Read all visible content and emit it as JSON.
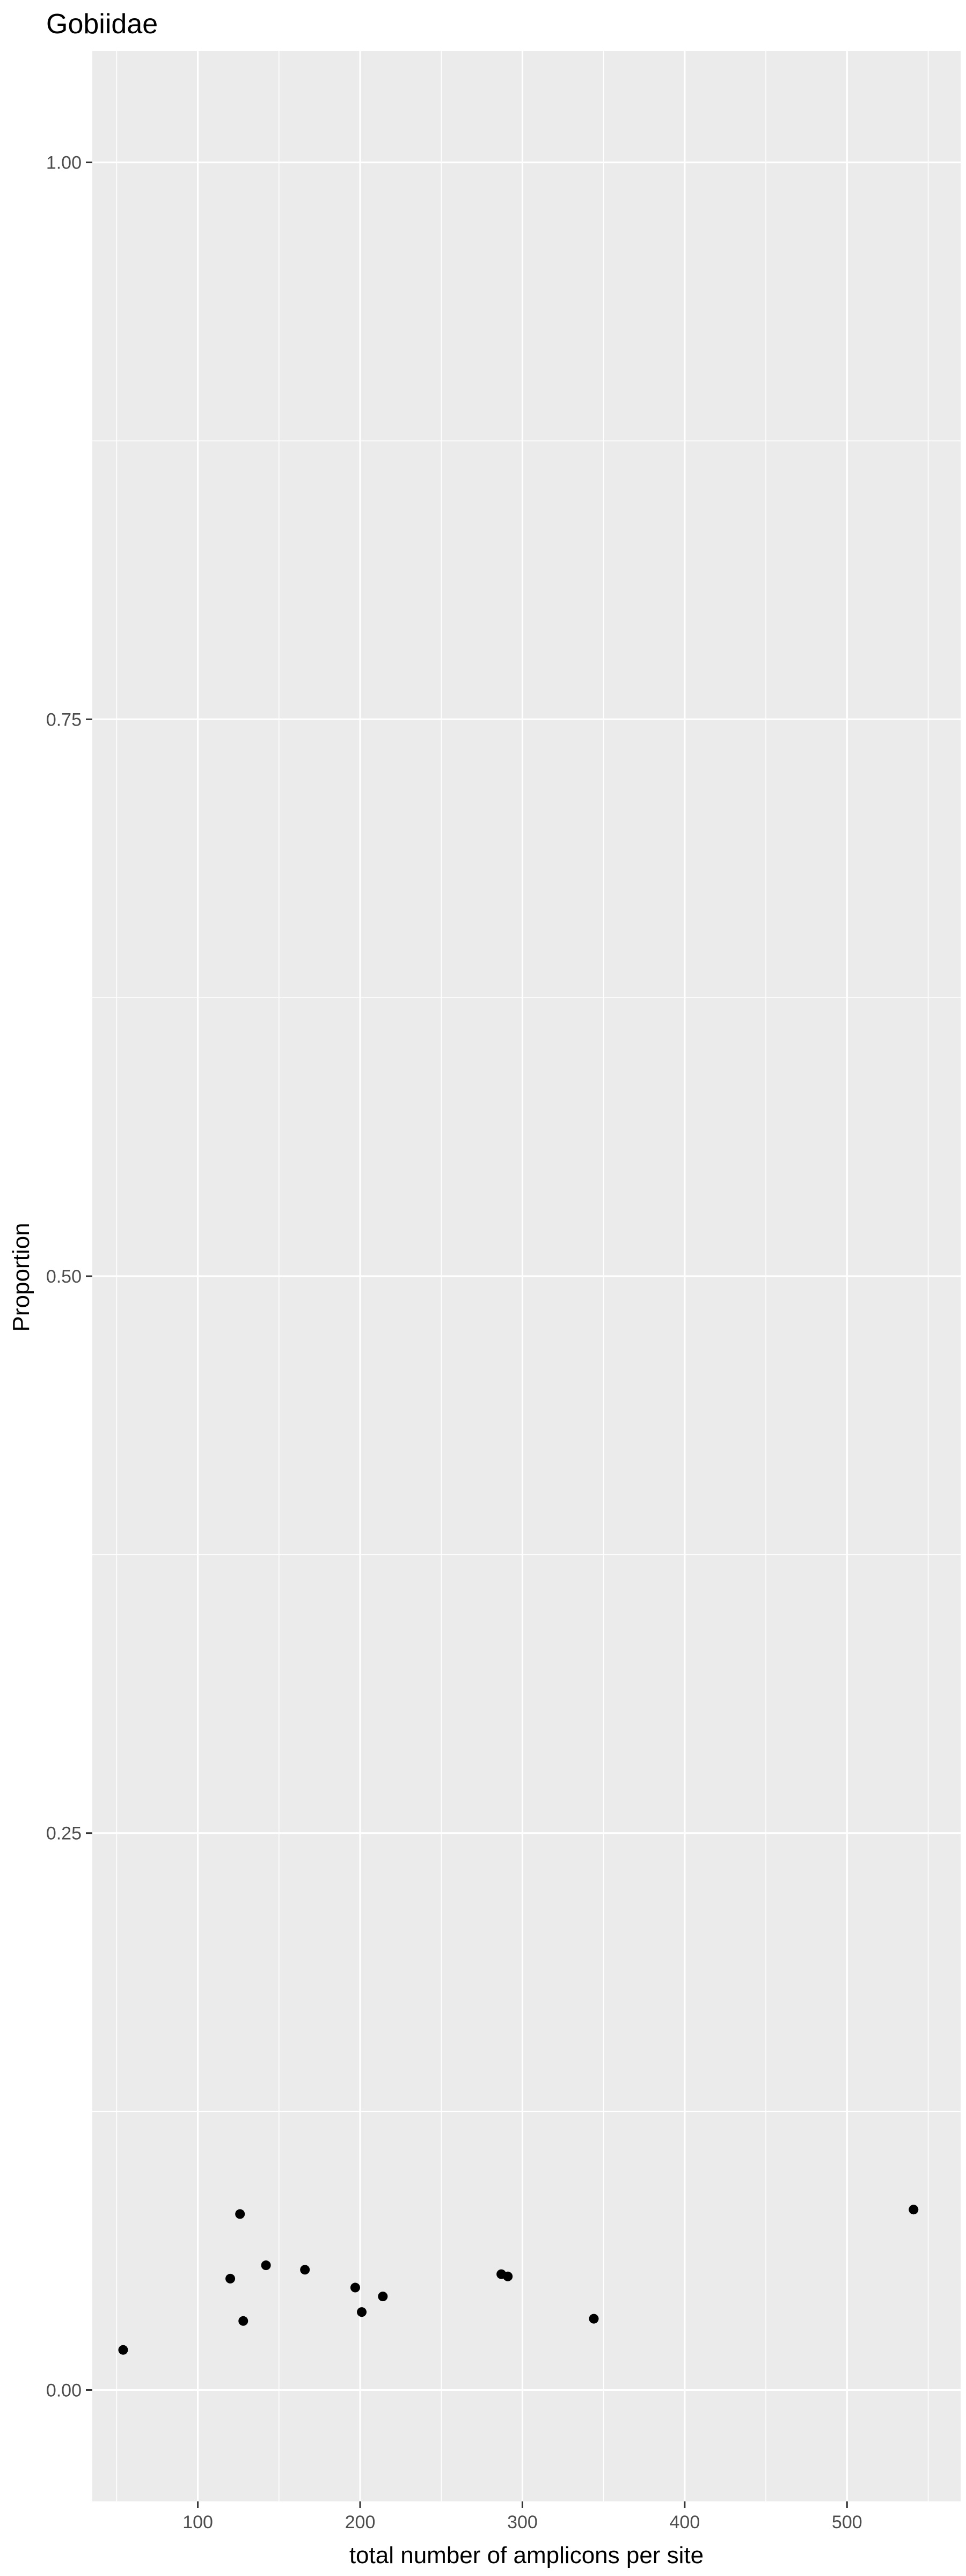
{
  "chart_data": {
    "type": "scatter",
    "title": "Gobiidae",
    "xlabel": "total number of amplicons per site",
    "ylabel": "Proportion",
    "xlim": [
      35,
      570
    ],
    "ylim": [
      -0.05,
      1.05
    ],
    "x_ticks": [
      100,
      200,
      300,
      400,
      500
    ],
    "x_tick_labels": [
      "100",
      "200",
      "300",
      "400",
      "500"
    ],
    "y_ticks": [
      0,
      0.25,
      0.5,
      0.75,
      1.0
    ],
    "y_tick_labels": [
      "0.00",
      "0.25",
      "0.50",
      "0.75",
      "1.00"
    ],
    "grid": true,
    "background": "#ebebeb",
    "point_color": "#000000",
    "points": [
      {
        "x": 54,
        "y": 0.018
      },
      {
        "x": 120,
        "y": 0.05
      },
      {
        "x": 126,
        "y": 0.079
      },
      {
        "x": 128,
        "y": 0.031
      },
      {
        "x": 142,
        "y": 0.056
      },
      {
        "x": 166,
        "y": 0.054
      },
      {
        "x": 197,
        "y": 0.046
      },
      {
        "x": 201,
        "y": 0.035
      },
      {
        "x": 214,
        "y": 0.042
      },
      {
        "x": 287,
        "y": 0.052
      },
      {
        "x": 291,
        "y": 0.051
      },
      {
        "x": 344,
        "y": 0.032
      },
      {
        "x": 541,
        "y": 0.081
      }
    ]
  }
}
